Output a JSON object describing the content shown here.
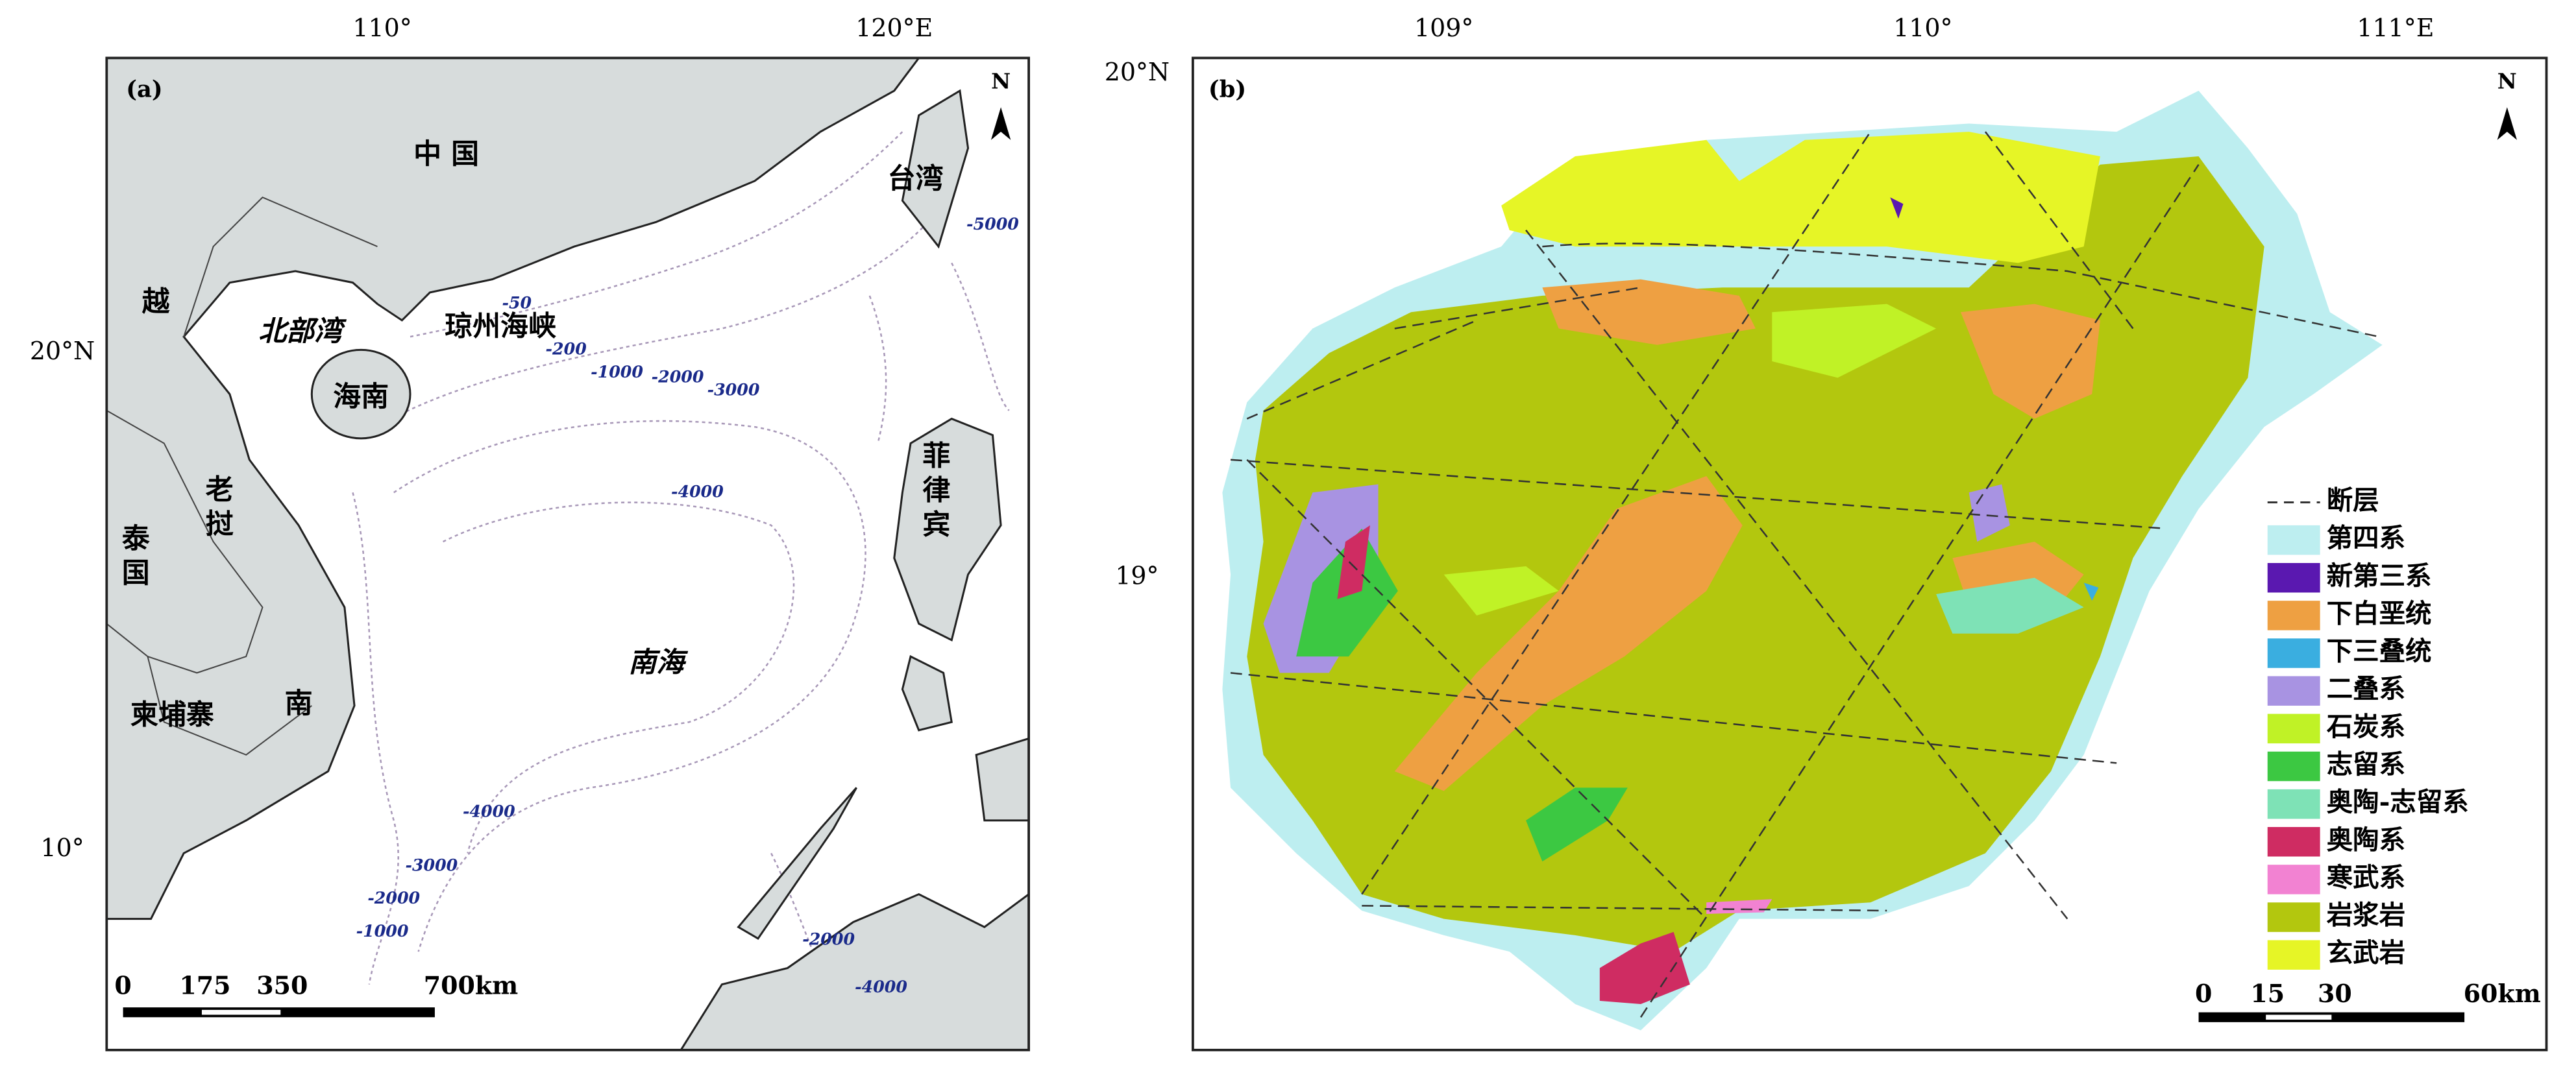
{
  "panel_a": {
    "label": "(a)",
    "lon_ticks": [
      "110°",
      "120°E"
    ],
    "lat_ticks": [
      "20°N",
      "10°"
    ],
    "north": "N",
    "places": [
      "中 国",
      "越",
      "北部湾",
      "琼州海峡",
      "海南",
      "老挝",
      "泰国",
      "柬埔寨",
      "南",
      "台湾",
      "菲律宾",
      "南海"
    ],
    "depths": [
      "-50",
      "-200",
      "-1000",
      "-2000",
      "-3000",
      "-4000",
      "-5000",
      "-4000",
      "-3000",
      "-2000",
      "-1000",
      "-2000",
      "-4000"
    ],
    "scale": [
      "0",
      "175",
      "350",
      "700km"
    ]
  },
  "panel_b": {
    "label": "(b)",
    "lon_ticks": [
      "109°",
      "110°",
      "111°E"
    ],
    "lat_ticks": [
      "20°N",
      "19°"
    ],
    "north": "N",
    "legend": [
      {
        "label": "断层",
        "color": "#333333"
      },
      {
        "label": "第四系",
        "color": "#bdeef0"
      },
      {
        "label": "新第三系",
        "color": "#5a18b0"
      },
      {
        "label": "下白垩统",
        "color": "#eea042"
      },
      {
        "label": "下三叠统",
        "color": "#3aaee0"
      },
      {
        "label": "二叠系",
        "color": "#a893e2"
      },
      {
        "label": "石炭系",
        "color": "#c0f226"
      },
      {
        "label": "志留系",
        "color": "#3cc842"
      },
      {
        "label": "奥陶-志留系",
        "color": "#7ee2b6"
      },
      {
        "label": "奥陶系",
        "color": "#cf2c62"
      },
      {
        "label": "寒武系",
        "color": "#f282d2"
      },
      {
        "label": "岩浆岩",
        "color": "#b3c70e"
      },
      {
        "label": "玄武岩",
        "color": "#e6f526"
      }
    ],
    "scale": [
      "0",
      "15",
      "30",
      "60km"
    ]
  }
}
